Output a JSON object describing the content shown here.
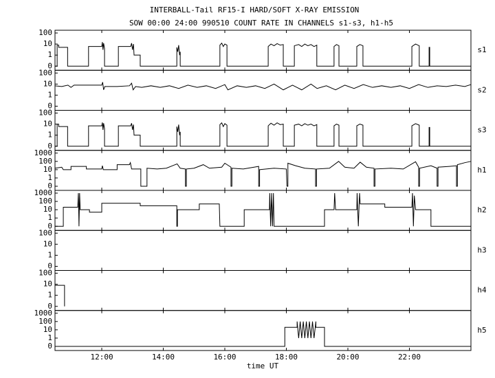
{
  "chart_data": {
    "type": "line",
    "title": "INTERBALL-Tail RF15-I HARD/SOFT X-RAY EMISSION",
    "subtitle": "SOW 00:00 24:00 990510  COUNT RATE IN CHANNELS s1-s3, h1-h5",
    "xlabel": "time UT",
    "color": "#000000",
    "log_scale": true,
    "xlim": [
      10.48,
      24.0
    ],
    "xticks": [
      {
        "value": 12,
        "label": "12:00"
      },
      {
        "value": 14,
        "label": "14:00"
      },
      {
        "value": 16,
        "label": "16:00"
      },
      {
        "value": 18,
        "label": "18:00"
      },
      {
        "value": 20,
        "label": "20:00"
      },
      {
        "value": 22,
        "label": "22:00"
      }
    ],
    "panels": [
      {
        "name": "s1",
        "ylim": [
          0,
          100
        ],
        "yticks": [
          0,
          1,
          10,
          100
        ],
        "x": [
          10.48,
          10.55,
          10.55,
          10.6,
          10.6,
          10.89,
          10.89,
          11.57,
          11.57,
          12.0,
          12.02,
          12.04,
          12.06,
          12.09,
          12.09,
          12.54,
          12.54,
          12.94,
          12.97,
          13.0,
          13.03,
          13.05,
          13.25,
          13.25,
          14.44,
          14.44,
          14.47,
          14.5,
          14.53,
          14.55,
          14.55,
          15.84,
          15.84,
          15.9,
          15.95,
          16.0,
          16.07,
          16.07,
          17.41,
          17.41,
          17.5,
          17.6,
          17.7,
          17.8,
          17.9,
          17.9,
          18.26,
          18.26,
          18.4,
          18.5,
          18.6,
          18.7,
          18.8,
          18.9,
          18.99,
          18.99,
          19.55,
          19.55,
          19.63,
          19.71,
          19.71,
          20.29,
          20.29,
          20.39,
          20.49,
          20.49,
          22.08,
          22.08,
          22.2,
          22.32,
          22.32,
          22.64,
          22.64,
          22.66,
          22.66,
          24.0
        ],
        "values": [
          0,
          0,
          8,
          8,
          5,
          5,
          0,
          0,
          6,
          6,
          15,
          3,
          12,
          4,
          0,
          0,
          6,
          6,
          12,
          3,
          10,
          1,
          1,
          0,
          0,
          5,
          2,
          8,
          1,
          2,
          0,
          0,
          8,
          12,
          6,
          10,
          8,
          0,
          0,
          6,
          10,
          7,
          11,
          8,
          9,
          0,
          0,
          7,
          9,
          6,
          10,
          7,
          9,
          6,
          8,
          0,
          0,
          6,
          9,
          7,
          0,
          0,
          6,
          9,
          7,
          0,
          0,
          6,
          10,
          7,
          0,
          0,
          5,
          5,
          0,
          0
        ]
      },
      {
        "name": "s2",
        "ylim": [
          0,
          100
        ],
        "yticks": [
          0,
          1,
          10,
          100
        ],
        "x": [
          10.48,
          10.7,
          10.9,
          11.0,
          11.1,
          11.6,
          12.0,
          12.03,
          12.06,
          12.1,
          12.5,
          12.9,
          12.97,
          13.02,
          13.1,
          13.3,
          13.6,
          13.9,
          14.2,
          14.5,
          14.8,
          15.1,
          15.4,
          15.7,
          16.0,
          16.1,
          16.4,
          16.7,
          17.0,
          17.3,
          17.6,
          17.9,
          18.2,
          18.5,
          18.8,
          19.0,
          19.3,
          19.6,
          19.9,
          20.2,
          20.5,
          20.8,
          21.1,
          21.4,
          21.7,
          22.0,
          22.3,
          22.6,
          22.9,
          23.2,
          23.5,
          23.8,
          24.0
        ],
        "values": [
          7,
          6,
          8,
          5,
          8,
          8,
          8,
          15,
          3,
          6,
          6,
          7,
          12,
          3,
          6,
          5,
          7,
          5,
          7,
          4,
          8,
          5,
          7,
          4,
          9,
          3,
          7,
          5,
          7,
          4,
          10,
          3,
          8,
          3,
          10,
          4,
          7,
          3,
          8,
          4,
          9,
          5,
          7,
          5,
          7,
          4,
          9,
          5,
          7,
          6,
          8,
          6,
          9
        ]
      },
      {
        "name": "s3",
        "ylim": [
          0,
          100
        ],
        "yticks": [
          0,
          1,
          10,
          100
        ],
        "x": [
          10.48,
          10.55,
          10.55,
          10.6,
          10.6,
          10.89,
          10.89,
          11.57,
          11.57,
          12.0,
          12.02,
          12.04,
          12.06,
          12.09,
          12.09,
          12.54,
          12.54,
          12.94,
          12.97,
          13.0,
          13.03,
          13.05,
          13.25,
          13.25,
          14.44,
          14.44,
          14.47,
          14.5,
          14.53,
          14.55,
          14.55,
          15.84,
          15.84,
          15.9,
          15.95,
          16.0,
          16.07,
          16.07,
          17.41,
          17.41,
          17.5,
          17.6,
          17.7,
          17.8,
          17.9,
          17.9,
          18.26,
          18.26,
          18.4,
          18.5,
          18.6,
          18.7,
          18.8,
          18.9,
          18.99,
          18.99,
          19.55,
          19.55,
          19.63,
          19.71,
          19.71,
          20.29,
          20.29,
          20.39,
          20.49,
          20.49,
          22.08,
          22.08,
          22.2,
          22.32,
          22.32,
          22.64,
          22.64,
          22.66,
          22.66,
          24.0
        ],
        "values": [
          0,
          0,
          10,
          10,
          6,
          6,
          0,
          0,
          7,
          7,
          14,
          3,
          12,
          4,
          0,
          0,
          7,
          7,
          12,
          3,
          9,
          1,
          1,
          0,
          0,
          6,
          2,
          9,
          1,
          2,
          0,
          0,
          9,
          13,
          6,
          11,
          8,
          0,
          0,
          7,
          12,
          8,
          13,
          9,
          10,
          0,
          0,
          8,
          10,
          7,
          11,
          8,
          10,
          7,
          9,
          0,
          0,
          7,
          10,
          8,
          0,
          0,
          7,
          10,
          8,
          0,
          0,
          7,
          11,
          8,
          0,
          0,
          5,
          5,
          0,
          0
        ]
      },
      {
        "name": "h1",
        "ylim": [
          0,
          1000
        ],
        "yticks": [
          0,
          1,
          10,
          100,
          1000
        ],
        "x": [
          10.48,
          10.7,
          10.75,
          11.0,
          11.0,
          11.5,
          11.5,
          12.0,
          12.02,
          12.05,
          12.5,
          12.5,
          12.9,
          12.93,
          12.97,
          13.27,
          13.27,
          13.47,
          13.47,
          13.8,
          14.1,
          14.45,
          14.55,
          14.72,
          14.72,
          14.75,
          14.75,
          15.0,
          15.3,
          15.5,
          15.9,
          16.0,
          16.2,
          16.2,
          16.23,
          16.23,
          16.6,
          17.1,
          17.1,
          17.13,
          17.13,
          17.6,
          18.0,
          18.02,
          18.05,
          18.05,
          18.3,
          18.6,
          18.95,
          18.95,
          18.98,
          18.98,
          19.4,
          19.7,
          19.9,
          20.2,
          20.4,
          20.6,
          20.85,
          20.85,
          20.88,
          20.88,
          21.4,
          21.8,
          22.2,
          22.3,
          22.3,
          22.33,
          22.33,
          22.7,
          22.9,
          22.9,
          22.93,
          22.93,
          23.3,
          23.53,
          23.53,
          23.56,
          23.56,
          23.8,
          24.0
        ],
        "values": [
          15,
          20,
          10,
          10,
          25,
          25,
          12,
          12,
          30,
          10,
          10,
          40,
          40,
          70,
          12,
          12,
          0,
          0,
          15,
          12,
          15,
          50,
          15,
          12,
          0,
          0,
          12,
          15,
          40,
          15,
          20,
          60,
          20,
          0,
          0,
          15,
          12,
          25,
          0,
          0,
          10,
          15,
          12,
          0,
          0,
          60,
          30,
          15,
          12,
          0,
          0,
          12,
          15,
          100,
          20,
          15,
          80,
          20,
          15,
          0,
          0,
          12,
          15,
          12,
          90,
          20,
          0,
          0,
          15,
          30,
          15,
          0,
          0,
          20,
          25,
          30,
          0,
          0,
          40,
          70,
          100
        ]
      },
      {
        "name": "h2",
        "ylim": [
          0,
          1000
        ],
        "yticks": [
          0,
          1,
          10,
          100,
          1000
        ],
        "x": [
          10.48,
          10.75,
          10.75,
          11.22,
          11.24,
          11.26,
          11.28,
          11.3,
          11.6,
          11.6,
          12.0,
          12.0,
          13.25,
          13.25,
          14.44,
          14.44,
          14.46,
          14.46,
          15.17,
          15.17,
          15.82,
          15.84,
          16.63,
          16.63,
          17.45,
          17.46,
          17.49,
          17.52,
          17.55,
          17.58,
          17.6,
          19.24,
          19.24,
          19.55,
          19.57,
          19.6,
          20.29,
          20.3,
          20.34,
          20.38,
          20.4,
          21.2,
          21.2,
          22.08,
          22.1,
          22.13,
          22.16,
          22.2,
          22.7,
          22.7,
          24.0
        ],
        "values": [
          0,
          0,
          20,
          20,
          1000,
          0,
          1000,
          10,
          10,
          5,
          5,
          60,
          60,
          30,
          30,
          0,
          0,
          10,
          10,
          50,
          50,
          0,
          0,
          10,
          10,
          1000,
          0,
          1000,
          0,
          1000,
          0,
          0,
          10,
          10,
          1000,
          10,
          10,
          1000,
          0,
          1000,
          50,
          50,
          20,
          20,
          1000,
          0,
          500,
          10,
          10,
          0,
          0
        ]
      },
      {
        "name": "h3",
        "ylim": [
          0,
          100
        ],
        "yticks": [
          0,
          1,
          10,
          100
        ],
        "x": [],
        "values": []
      },
      {
        "name": "h4",
        "ylim": [
          0,
          100
        ],
        "yticks": [
          0,
          1,
          10,
          100
        ],
        "x": [
          10.48,
          10.79,
          10.79
        ],
        "values": [
          8,
          8,
          0
        ]
      },
      {
        "name": "h5",
        "ylim": [
          0,
          1000
        ],
        "yticks": [
          0,
          1,
          10,
          100,
          1000
        ],
        "x": [
          10.48,
          17.95,
          17.95,
          18.35,
          18.35,
          18.4,
          18.45,
          18.5,
          18.55,
          18.6,
          18.65,
          18.7,
          18.75,
          18.8,
          18.85,
          18.9,
          18.96,
          18.96,
          19.24,
          19.24,
          24.0
        ],
        "values": [
          0,
          0,
          20,
          20,
          100,
          1,
          100,
          1,
          100,
          1,
          100,
          1,
          100,
          1,
          100,
          1,
          100,
          20,
          20,
          0,
          0
        ]
      }
    ]
  }
}
